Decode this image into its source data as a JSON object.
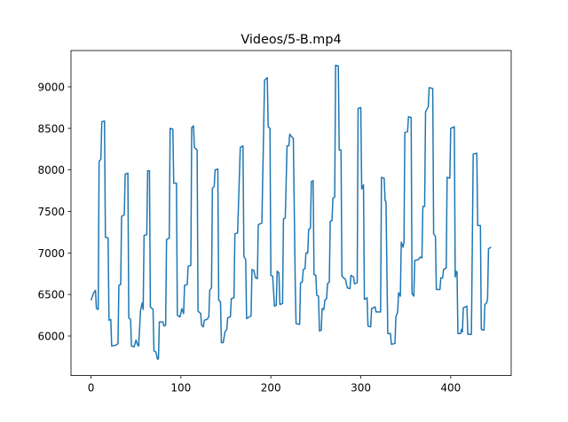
{
  "chart_data": {
    "type": "line",
    "title": "Videos/5-B.mp4",
    "color": "#1f77b4",
    "x": [
      0,
      3,
      5,
      6,
      8,
      9,
      11,
      12,
      15,
      16,
      19,
      20,
      22,
      23,
      28,
      30,
      31,
      33,
      34,
      37,
      38,
      41,
      42,
      44,
      45,
      48,
      50,
      52,
      53,
      55,
      57,
      58,
      59,
      62,
      63,
      65,
      66,
      69,
      70,
      72,
      74,
      75,
      76,
      80,
      81,
      83,
      84,
      87,
      88,
      91,
      92,
      95,
      96,
      99,
      101,
      103,
      104,
      107,
      108,
      111,
      112,
      114,
      115,
      118,
      119,
      122,
      123,
      125,
      126,
      129,
      131,
      132,
      134,
      135,
      137,
      138,
      141,
      142,
      144,
      145,
      147,
      149,
      151,
      152,
      155,
      156,
      159,
      160,
      163,
      166,
      169,
      170,
      172,
      173,
      176,
      178,
      179,
      181,
      183,
      185,
      186,
      190,
      193,
      196,
      197,
      199,
      200,
      202,
      204,
      206,
      207,
      209,
      210,
      213,
      214,
      216,
      218,
      220,
      221,
      223,
      225,
      227,
      228,
      232,
      233,
      235,
      236,
      238,
      239,
      241,
      242,
      244,
      245,
      247,
      248,
      250,
      251,
      253,
      254,
      256,
      257,
      259,
      260,
      262,
      263,
      265,
      266,
      268,
      269,
      271,
      272,
      275,
      276,
      278,
      279,
      283,
      285,
      288,
      289,
      292,
      293,
      296,
      297,
      300,
      301,
      303,
      304,
      307,
      308,
      311,
      312,
      316,
      317,
      322,
      323,
      326,
      327,
      328,
      330,
      333,
      334,
      338,
      339,
      341,
      342,
      344,
      345,
      347,
      348,
      349,
      352,
      353,
      356,
      357,
      359,
      360,
      364,
      366,
      368,
      369,
      371,
      372,
      375,
      376,
      380,
      381,
      383,
      384,
      388,
      389,
      391,
      392,
      395,
      396,
      399,
      400,
      404,
      405,
      406,
      407,
      408,
      411,
      412,
      413,
      414,
      418,
      419,
      423,
      425,
      429,
      430,
      433,
      434,
      437,
      438,
      440,
      441,
      442,
      445
    ],
    "values": [
      6430,
      6520,
      6550,
      6330,
      6320,
      8100,
      8130,
      8580,
      8590,
      7190,
      7180,
      6190,
      6200,
      5880,
      5890,
      5910,
      6610,
      6620,
      7440,
      7460,
      7950,
      7960,
      6220,
      6200,
      5880,
      5870,
      5950,
      5890,
      5880,
      6300,
      6400,
      6320,
      7210,
      7220,
      7990,
      7990,
      6350,
      6320,
      5820,
      5810,
      5720,
      5730,
      6170,
      6170,
      6120,
      6130,
      7160,
      7180,
      8500,
      8490,
      7840,
      7840,
      6250,
      6230,
      6330,
      6270,
      6610,
      6620,
      6840,
      6850,
      8510,
      8530,
      8270,
      8240,
      6300,
      6270,
      6130,
      6110,
      6190,
      6200,
      6230,
      6550,
      6580,
      7780,
      7800,
      8000,
      8010,
      6430,
      6410,
      5920,
      5920,
      6050,
      6080,
      6220,
      6230,
      6450,
      6460,
      7230,
      7240,
      8270,
      8290,
      6960,
      6920,
      6210,
      6230,
      6240,
      6800,
      6790,
      6700,
      6690,
      7340,
      7360,
      9080,
      9110,
      8520,
      8500,
      6730,
      6720,
      6360,
      6370,
      6780,
      6760,
      6380,
      6390,
      7410,
      7420,
      8290,
      8290,
      8430,
      8400,
      8380,
      6700,
      6150,
      6140,
      6640,
      6650,
      6800,
      6810,
      7000,
      7000,
      7280,
      7300,
      7860,
      7870,
      6740,
      6730,
      6490,
      6480,
      6060,
      6070,
      6330,
      6320,
      6430,
      6450,
      6630,
      6650,
      7380,
      7390,
      7660,
      7670,
      9260,
      9250,
      8240,
      8240,
      6720,
      6680,
      6580,
      6570,
      6730,
      6710,
      6630,
      6640,
      8740,
      8750,
      7770,
      7820,
      6440,
      6460,
      6120,
      6110,
      6330,
      6350,
      6290,
      6290,
      7910,
      7900,
      7630,
      7620,
      6030,
      6030,
      5900,
      5910,
      6230,
      6290,
      6520,
      6480,
      7130,
      7070,
      7130,
      8450,
      8460,
      8640,
      8630,
      6510,
      6480,
      6910,
      6920,
      6950,
      6940,
      7560,
      7560,
      8700,
      8760,
      8990,
      8980,
      7230,
      7200,
      6560,
      6560,
      6700,
      6700,
      6800,
      6820,
      7910,
      7900,
      8500,
      8520,
      6710,
      6780,
      6770,
      6030,
      6030,
      6080,
      6050,
      6340,
      6360,
      6020,
      6020,
      8190,
      8200,
      7330,
      7330,
      6080,
      6070,
      6380,
      6400,
      6450,
      7050,
      7070
    ],
    "xlim": [
      -22.25,
      467.25
    ],
    "ylim": [
      5524,
      9437
    ],
    "xticks": [
      0,
      100,
      200,
      300,
      400
    ],
    "yticks": [
      6000,
      6500,
      7000,
      7500,
      8000,
      8500,
      9000
    ]
  }
}
